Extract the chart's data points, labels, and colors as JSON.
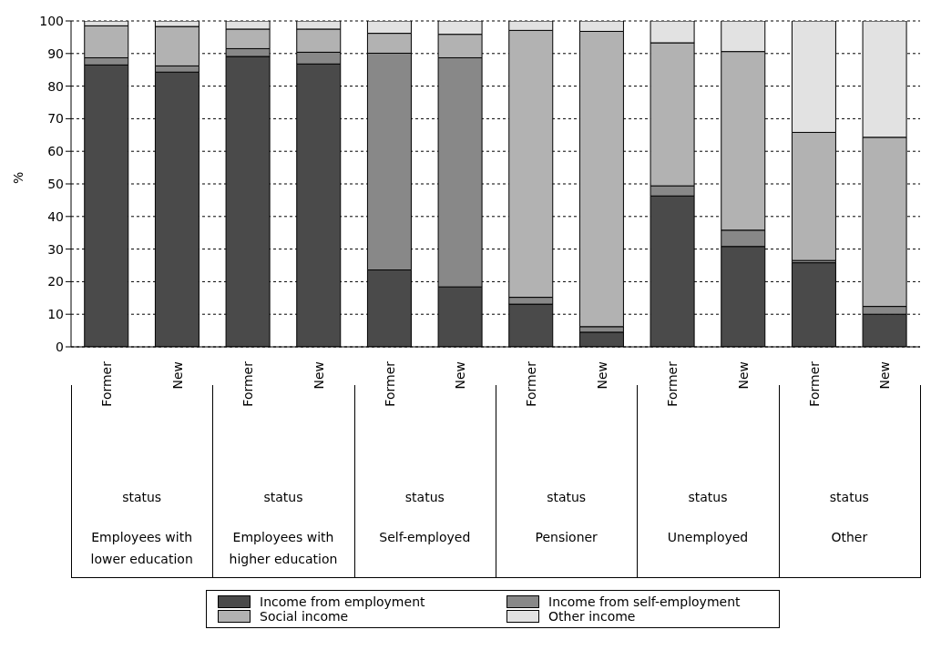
{
  "chart_data": {
    "type": "bar",
    "stacked": true,
    "ylabel": "%",
    "categories": [
      "Former",
      "New",
      "Former",
      "New",
      "Former",
      "New",
      "Former",
      "New",
      "Former",
      "New",
      "Former",
      "New"
    ],
    "annotations": [
      "status",
      "Employees with lower education",
      "status",
      "Employees with higher education",
      "status",
      "Self-employed",
      "status",
      "Pensioner",
      "status",
      "Unemployed",
      "status",
      "Other"
    ],
    "series": [
      {
        "name": "Income from employment",
        "color": "#4a4a4a",
        "values": [
          86.5,
          84.3,
          89.1,
          86.8,
          23.6,
          18.4,
          13.1,
          4.5,
          46.3,
          30.8,
          25.8,
          10.0
        ]
      },
      {
        "name": "Income from self-employment",
        "color": "#888888",
        "values": [
          2.2,
          1.9,
          2.4,
          3.6,
          66.5,
          70.3,
          2.1,
          1.7,
          3.1,
          5.0,
          0.7,
          2.4
        ]
      },
      {
        "name": "Social income",
        "color": "#b2b2b2",
        "values": [
          9.8,
          12.1,
          6.0,
          7.1,
          6.1,
          7.2,
          81.9,
          90.6,
          43.9,
          54.8,
          39.3,
          51.9
        ]
      },
      {
        "name": "Other income",
        "color": "#e2e2e2",
        "values": [
          1.5,
          1.7,
          2.5,
          2.5,
          3.8,
          4.1,
          2.9,
          3.2,
          6.7,
          9.4,
          34.2,
          35.7
        ]
      }
    ],
    "ylim": [
      0,
      100
    ],
    "yticks": [
      0,
      10,
      20,
      30,
      40,
      50,
      60,
      70,
      80,
      90,
      100
    ],
    "grid": "y",
    "legend": "bottom"
  }
}
